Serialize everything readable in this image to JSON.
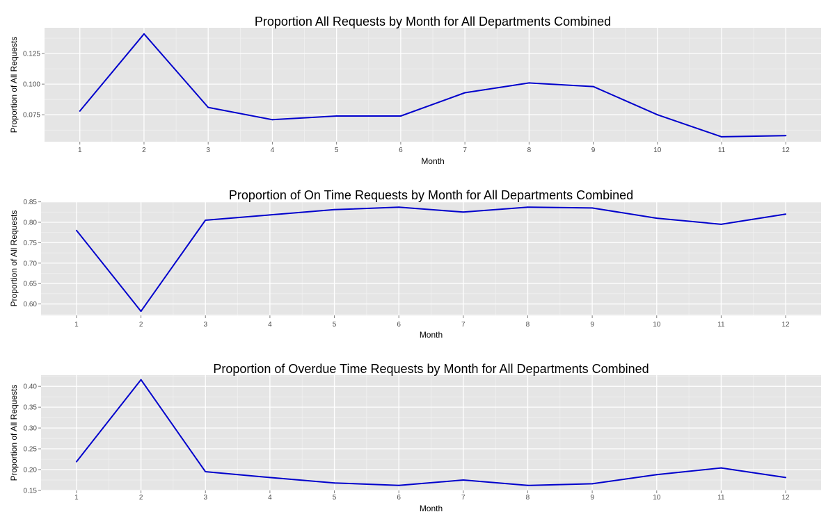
{
  "colors": {
    "panel": "#e5e5e5",
    "grid_major": "#ffffff",
    "grid_minor": "#f2f2f2",
    "line": "#0000cc",
    "tick": "#7f7f7f"
  },
  "chart_data": [
    {
      "type": "line",
      "title": "Proportion All Requests by Month for All Departments Combined",
      "xlabel": "Month",
      "ylabel": "Proportion of All Requests",
      "x": [
        1,
        2,
        3,
        4,
        5,
        6,
        7,
        8,
        9,
        10,
        11,
        12
      ],
      "y": [
        0.078,
        0.141,
        0.081,
        0.071,
        0.074,
        0.074,
        0.093,
        0.101,
        0.098,
        0.075,
        0.057,
        0.058
      ],
      "xlim": [
        0.45,
        12.55
      ],
      "ylim": [
        0.053,
        0.146
      ],
      "yticks": [
        0.075,
        0.1,
        0.125
      ],
      "ytick_labels": [
        "0.075",
        "0.100",
        "0.125"
      ],
      "grid": true,
      "legend": "none"
    },
    {
      "type": "line",
      "title": "Proportion of On Time Requests by Month for All Departments Combined",
      "xlabel": "Month",
      "ylabel": "Proportion of All Requests",
      "x": [
        1,
        2,
        3,
        4,
        5,
        6,
        7,
        8,
        9,
        10,
        11,
        12
      ],
      "y": [
        0.78,
        0.582,
        0.805,
        0.818,
        0.831,
        0.837,
        0.825,
        0.837,
        0.835,
        0.81,
        0.795,
        0.82
      ],
      "xlim": [
        0.45,
        12.55
      ],
      "ylim": [
        0.572,
        0.851
      ],
      "yticks": [
        0.6,
        0.65,
        0.7,
        0.75,
        0.8,
        0.85
      ],
      "ytick_labels": [
        "0.60",
        "0.65",
        "0.70",
        "0.75",
        "0.80",
        "0.85"
      ],
      "grid": true,
      "legend": "none"
    },
    {
      "type": "line",
      "title": "Proportion of Overdue Time Requests by Month for All Departments Combined",
      "xlabel": "Month",
      "ylabel": "Proportion of All Requests",
      "x": [
        1,
        2,
        3,
        4,
        5,
        6,
        7,
        8,
        9,
        10,
        11,
        12
      ],
      "y": [
        0.219,
        0.416,
        0.195,
        0.181,
        0.168,
        0.162,
        0.175,
        0.162,
        0.166,
        0.188,
        0.204,
        0.181
      ],
      "xlim": [
        0.45,
        12.55
      ],
      "ylim": [
        0.15,
        0.427
      ],
      "yticks": [
        0.15,
        0.2,
        0.25,
        0.3,
        0.35,
        0.4
      ],
      "ytick_labels": [
        "0.15",
        "0.20",
        "0.25",
        "0.30",
        "0.35",
        "0.40"
      ],
      "grid": true,
      "legend": "none"
    }
  ]
}
